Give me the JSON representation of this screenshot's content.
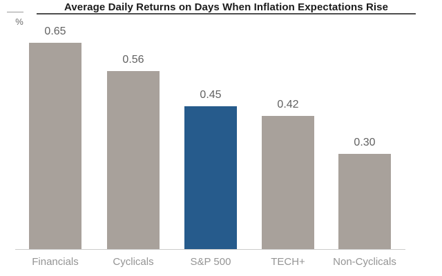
{
  "chart_data": {
    "type": "bar",
    "title": "Average Daily Returns on Days When Inflation Expectations Rise",
    "ylabel": "%",
    "ylim": [
      0,
      0.7
    ],
    "grid": false,
    "categories": [
      "Financials",
      "Cyclicals",
      "S&P 500",
      "TECH+",
      "Non-Cyclicals"
    ],
    "values": [
      0.65,
      0.56,
      0.45,
      0.42,
      0.3
    ],
    "value_labels": [
      "0.65",
      "0.56",
      "0.45",
      "0.42",
      "0.30"
    ],
    "highlight_index": 2,
    "bar_color": "#a8a19b",
    "highlight_color": "#265b8c",
    "value_label_color": "#616161",
    "category_label_color": "#949494"
  }
}
